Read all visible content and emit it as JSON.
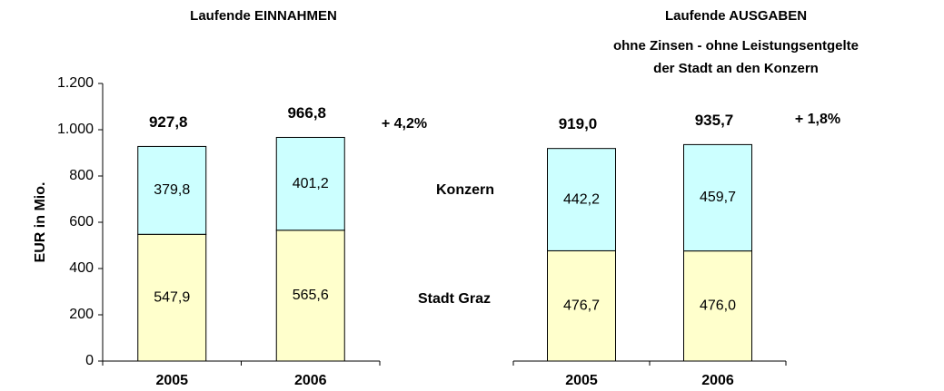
{
  "chart_data": [
    {
      "type": "stacked_bar",
      "title": "Laufende EINNAHMEN",
      "y_label": "EUR in Mio.",
      "categories": [
        "2005",
        "2006"
      ],
      "series": [
        {
          "name": "Stadt Graz",
          "color": "#ffffcc",
          "values": [
            547.9,
            565.6
          ],
          "value_labels": [
            "547,9",
            "565,6"
          ]
        },
        {
          "name": "Konzern",
          "color": "#ccffff",
          "values": [
            379.8,
            401.2
          ],
          "value_labels": [
            "379,8",
            "401,2"
          ]
        }
      ],
      "totals": [
        927.8,
        966.8
      ],
      "total_labels": [
        "927,8",
        "966,8"
      ],
      "annotation": "+ 4,2%",
      "ylim": [
        0,
        1200
      ],
      "yticks": [
        0,
        200,
        400,
        600,
        800,
        {
          "value": 1000,
          "label": "1.000"
        },
        {
          "value": 1200,
          "label": "1.200"
        }
      ]
    },
    {
      "type": "stacked_bar",
      "title": "Laufende AUSGABEN",
      "subtitle": [
        "ohne Zinsen - ohne Leistungsentgelte",
        "der Stadt an den Konzern"
      ],
      "categories": [
        "2005",
        "2006"
      ],
      "series": [
        {
          "name": "Stadt Graz",
          "color": "#ffffcc",
          "values": [
            476.7,
            476.0
          ],
          "value_labels": [
            "476,7",
            "476,0"
          ]
        },
        {
          "name": "Konzern",
          "color": "#ccffff",
          "values": [
            442.2,
            459.7
          ],
          "value_labels": [
            "442,2",
            "459,7"
          ]
        }
      ],
      "totals": [
        919.0,
        935.7
      ],
      "total_labels": [
        "919,0",
        "935,7"
      ],
      "annotation": "+ 1,8%",
      "ylim": [
        0,
        1200
      ]
    }
  ]
}
